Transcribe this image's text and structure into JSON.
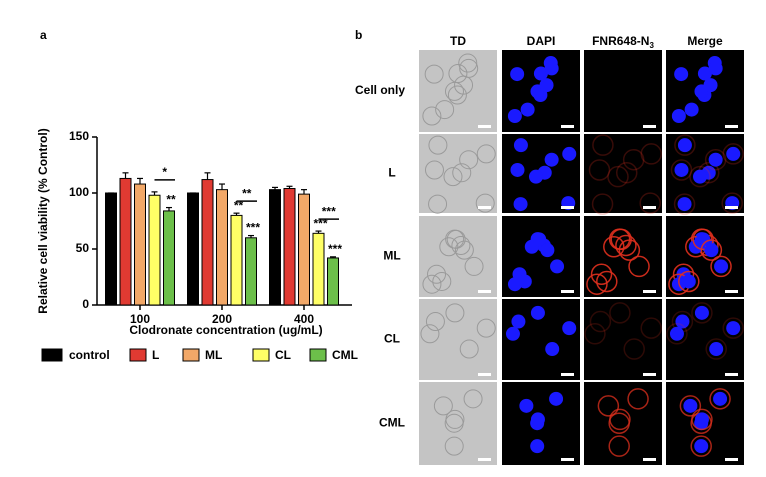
{
  "chart_data": {
    "type": "bar",
    "panel_label": "a",
    "ylabel": "Relative cell viability (% Control)",
    "xlabel": "Clodronate concentration (ug/mL)",
    "categories": [
      "100",
      "200",
      "400"
    ],
    "ylim": [
      0,
      150
    ],
    "yticks": [
      0,
      50,
      100,
      150
    ],
    "series": [
      {
        "name": "control",
        "color": "#000000",
        "values": [
          100,
          100,
          103
        ],
        "errors": [
          0,
          0,
          2
        ],
        "significance": [
          null,
          null,
          null
        ]
      },
      {
        "name": "L",
        "color": "#e03a32",
        "values": [
          113,
          112,
          104
        ],
        "errors": [
          5,
          6,
          2
        ],
        "significance": [
          null,
          null,
          null
        ]
      },
      {
        "name": "ML",
        "color": "#f2a868",
        "values": [
          108,
          103,
          99
        ],
        "errors": [
          5,
          5,
          4
        ],
        "significance": [
          null,
          null,
          null
        ]
      },
      {
        "name": "CL",
        "color": "#ffff66",
        "values": [
          98,
          80,
          64
        ],
        "errors": [
          3,
          2,
          2
        ],
        "significance": [
          null,
          "**",
          "***"
        ]
      },
      {
        "name": "CML",
        "color": "#6cbf4a",
        "values": [
          84,
          60,
          42
        ],
        "errors": [
          3,
          2,
          1
        ],
        "significance": [
          "**",
          "***",
          "***"
        ]
      }
    ],
    "brackets": [
      "*",
      "**",
      "***"
    ]
  },
  "panel_b": {
    "panel_label": "b",
    "columns": [
      "TD",
      "DAPI",
      {
        "text": "FNR648-N",
        "sub": "3"
      },
      "Merge"
    ],
    "rows": [
      "Cell only",
      "L",
      "ML",
      "CL",
      "CML"
    ]
  }
}
